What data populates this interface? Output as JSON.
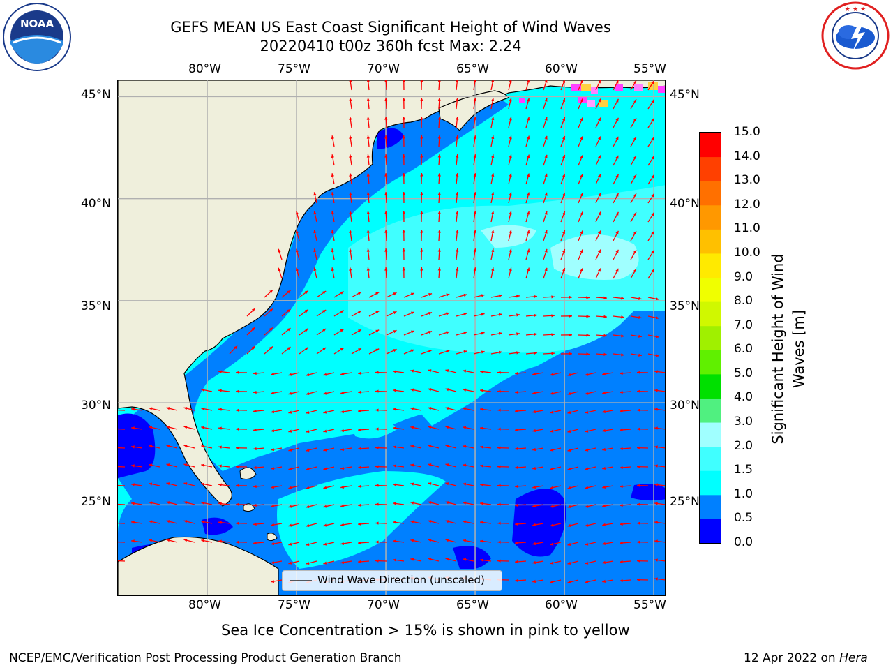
{
  "header": {
    "title_line1": "GEFS MEAN US East Coast Significant Height of Wind Waves",
    "title_line2": "20220410 t00z 360h fcst   Max: 2.24"
  },
  "logos": {
    "left": "NOAA",
    "left_ring": "NATIONAL OCEANIC AND ATMOSPHERIC ADMINISTRATION · U.S. DEPARTMENT OF COMMERCE",
    "right_ring": "NATIONAL WEATHER SERVICE"
  },
  "map": {
    "lon_labels": [
      "80°W",
      "75°W",
      "70°W",
      "65°W",
      "60°W",
      "55°W"
    ],
    "lat_labels": [
      "45°N",
      "40°N",
      "35°N",
      "30°N",
      "25°N"
    ],
    "lon_range": [
      -85,
      -54.3
    ],
    "lat_range": [
      20.5,
      45.8
    ],
    "gridlines": true,
    "land_color": "#efefdc",
    "vector_color": "#ff0000",
    "legend_label": "Wind Wave Direction (unscaled)"
  },
  "colorbar": {
    "title": "Significant Height of Wind Waves [m]",
    "tick_labels": [
      "0.0",
      "0.5",
      "1.0",
      "1.5",
      "2.0",
      "3.0",
      "4.0",
      "5.0",
      "6.0",
      "7.0",
      "8.0",
      "9.0",
      "10.0",
      "11.0",
      "12.0",
      "13.0",
      "14.0",
      "15.0"
    ],
    "colors": [
      "#0000ff",
      "#0080ff",
      "#00ffff",
      "#40ffff",
      "#a0ffff",
      "#50f080",
      "#00e000",
      "#60f000",
      "#a0f000",
      "#d0f800",
      "#f0ff00",
      "#ffea00",
      "#ffc000",
      "#ff9800",
      "#ff7000",
      "#ff4000",
      "#ff0000"
    ]
  },
  "footer": {
    "note": "Sea Ice Concentration > 15% is shown in pink to yellow",
    "left": "NCEP/EMC/Verification Post Processing Product Generation Branch",
    "right_prefix": "12 Apr 2022 on ",
    "right_italic": "Hera"
  }
}
